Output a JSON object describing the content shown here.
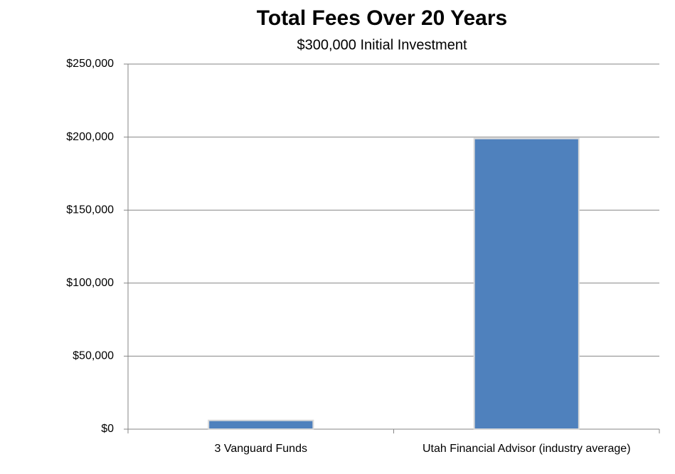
{
  "chart_data": {
    "type": "bar",
    "title": "Total Fees Over 20 Years",
    "subtitle": "$300,000 Initial Investment",
    "categories": [
      "3 Vanguard Funds",
      "Utah Financial Advisor (industry average)"
    ],
    "values": [
      6000,
      199000
    ],
    "color": "#4f81bd",
    "ylim": [
      0,
      250000
    ],
    "yticks": [
      {
        "value": 0,
        "label": "$0"
      },
      {
        "value": 50000,
        "label": "$50,000"
      },
      {
        "value": 100000,
        "label": "$100,000"
      },
      {
        "value": 150000,
        "label": "$150,000"
      },
      {
        "value": 200000,
        "label": "$200,000"
      },
      {
        "value": 250000,
        "label": "$250,000"
      }
    ],
    "grid": true
  }
}
